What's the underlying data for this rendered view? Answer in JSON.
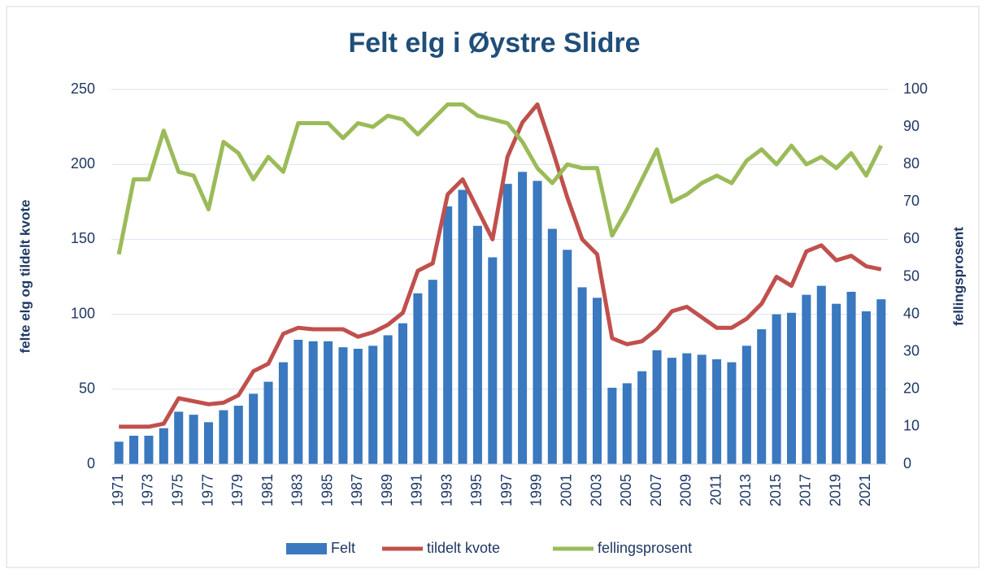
{
  "chart_data": {
    "type": "bar-line",
    "title": "Felt elg i Øystre Slidre",
    "y_label": "felte elg og tildelt kvote",
    "y2_label": "fellingsprosent",
    "categories": [
      "1971",
      null,
      "1973",
      null,
      "1975",
      null,
      "1977",
      null,
      "1979",
      null,
      "1981",
      null,
      "1983",
      null,
      "1985",
      null,
      "1987",
      null,
      "1989",
      null,
      "1991",
      null,
      "1993",
      null,
      "1995",
      null,
      "1997",
      null,
      "1999",
      null,
      "2001",
      null,
      "2003",
      null,
      "2005",
      null,
      "2007",
      null,
      "2009",
      null,
      "2011",
      null,
      "2013",
      null,
      "2015",
      null,
      "2017",
      null,
      "2019",
      null,
      "2021",
      null
    ],
    "series": [
      {
        "name": "Felt",
        "type": "bar",
        "color": "#3a78bf",
        "values": [
          15,
          19,
          19,
          24,
          35,
          33,
          28,
          36,
          39,
          47,
          55,
          68,
          83,
          82,
          82,
          78,
          77,
          79,
          86,
          94,
          114,
          123,
          172,
          183,
          159,
          138,
          187,
          195,
          189,
          157,
          143,
          118,
          111,
          51,
          54,
          62,
          76,
          71,
          74,
          73,
          70,
          68,
          79,
          90,
          100,
          101,
          113,
          119,
          107,
          115,
          102,
          110
        ]
      },
      {
        "name": "tildelt kvote",
        "type": "line",
        "color": "#c0504d",
        "values": [
          25,
          25,
          25,
          27,
          44,
          42,
          40,
          41,
          46,
          62,
          67,
          87,
          91,
          90,
          90,
          90,
          85,
          88,
          93,
          101,
          129,
          134,
          180,
          190,
          170,
          150,
          205,
          228,
          240,
          210,
          178,
          150,
          140,
          84,
          80,
          82,
          90,
          102,
          105,
          98,
          91,
          91,
          97,
          107,
          125,
          119,
          142,
          146,
          136,
          139,
          132,
          130
        ]
      },
      {
        "name": "fellingsprosent",
        "type": "line",
        "axis": "y2",
        "color": "#9bbb59",
        "values": [
          56,
          76,
          76,
          89,
          78,
          77,
          68,
          86,
          83,
          76,
          82,
          78,
          91,
          91,
          91,
          87,
          91,
          90,
          93,
          92,
          88,
          92,
          96,
          96,
          93,
          92,
          91,
          86,
          79,
          75,
          80,
          79,
          79,
          61,
          68,
          76,
          84,
          70,
          72,
          75,
          77,
          75,
          81,
          84,
          80,
          85,
          80,
          82,
          79,
          83,
          77,
          85
        ]
      }
    ],
    "ylim": [
      0,
      250
    ],
    "yticks": [
      0,
      50,
      100,
      150,
      200,
      250
    ],
    "y2lim": [
      0,
      100
    ],
    "y2ticks": [
      0,
      10,
      20,
      30,
      40,
      50,
      60,
      70,
      80,
      90,
      100
    ],
    "grid": true,
    "legend": "bottom"
  }
}
